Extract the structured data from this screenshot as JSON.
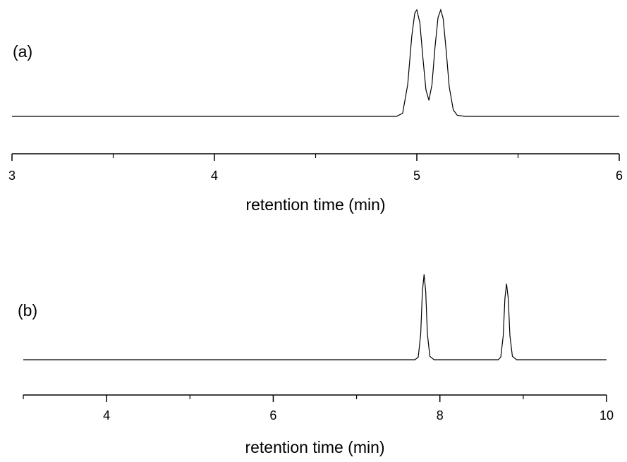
{
  "chart_data": [
    {
      "type": "line",
      "annotation": "(a)",
      "x_label": "retention time (min)",
      "x": [
        3,
        4.9,
        4.93,
        4.955,
        4.975,
        4.99,
        5.0,
        5.015,
        5.03,
        5.045,
        5.06,
        5.075,
        5.09,
        5.105,
        5.118,
        5.13,
        5.145,
        5.16,
        5.18,
        5.2,
        5.24,
        6
      ],
      "values": [
        0,
        0,
        0.03,
        0.3,
        0.75,
        0.97,
        1.0,
        0.88,
        0.55,
        0.25,
        0.15,
        0.3,
        0.65,
        0.93,
        1.0,
        0.92,
        0.62,
        0.28,
        0.06,
        0.01,
        0,
        0
      ],
      "color": "#000000",
      "xlim": [
        3,
        6
      ],
      "xticks": [
        3,
        4,
        5,
        6
      ],
      "xminor_ticks": [
        3.5,
        4.5,
        5.5
      ],
      "ylim": [
        0,
        1
      ]
    },
    {
      "type": "line",
      "annotation": "(b)",
      "x_label": "retention time (min)",
      "x": [
        3,
        7.7,
        7.74,
        7.77,
        7.79,
        7.81,
        7.83,
        7.85,
        7.88,
        7.93,
        8.7,
        8.73,
        8.76,
        8.78,
        8.8,
        8.82,
        8.84,
        8.87,
        8.92,
        10
      ],
      "values": [
        0,
        0,
        0.03,
        0.3,
        0.8,
        1.0,
        0.8,
        0.3,
        0.04,
        0,
        0,
        0.03,
        0.28,
        0.72,
        0.89,
        0.72,
        0.28,
        0.04,
        0,
        0
      ],
      "color": "#000000",
      "xlim": [
        3,
        10
      ],
      "xticks": [
        4,
        6,
        8,
        10
      ],
      "xminor_ticks": [
        3,
        5,
        7,
        9
      ],
      "ylim": [
        0,
        1
      ]
    }
  ]
}
